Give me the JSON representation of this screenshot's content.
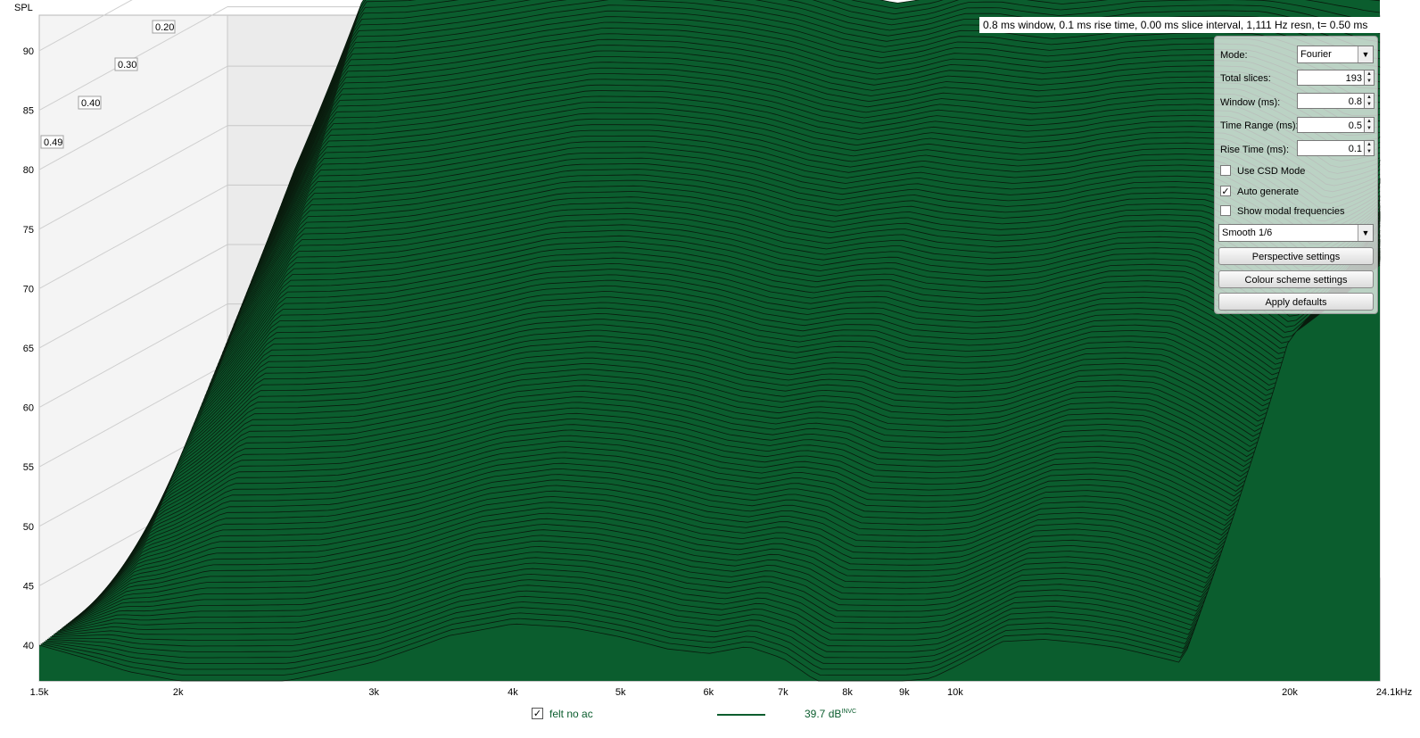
{
  "chart_data": {
    "type": "area",
    "subtype": "cumulative spectral decay waterfall",
    "ylabel": "SPL",
    "yticks": [
      40,
      45,
      50,
      55,
      60,
      65,
      70,
      75,
      80,
      85,
      90
    ],
    "ylim": [
      37,
      93
    ],
    "xscale": "log",
    "xlim_hz": [
      1500,
      24100
    ],
    "xticks": [
      {
        "label": "1.5k",
        "hz": 1500
      },
      {
        "label": "2k",
        "hz": 2000
      },
      {
        "label": "3k",
        "hz": 3000
      },
      {
        "label": "4k",
        "hz": 4000
      },
      {
        "label": "5k",
        "hz": 5000
      },
      {
        "label": "6k",
        "hz": 6000
      },
      {
        "label": "7k",
        "hz": 7000
      },
      {
        "label": "8k",
        "hz": 8000
      },
      {
        "label": "9k",
        "hz": 9000
      },
      {
        "label": "10k",
        "hz": 10000
      },
      {
        "label": "20k",
        "hz": 20000
      },
      {
        "label": "24.1kHz",
        "hz": 24100
      }
    ],
    "depth_ticks_ms": [
      "0.20",
      "0.30",
      "0.40",
      "0.49"
    ],
    "grid": true,
    "fill_color": "#0b5d2e",
    "line_color": "#0a1a0d",
    "slice_count": 193,
    "series": [
      {
        "name": "felt no ac",
        "slice": "first (t = 0 ms)",
        "hz": [
          1500,
          1700,
          2000,
          2200,
          2500,
          3000,
          3400,
          4000,
          4500,
          5000,
          5500,
          6000,
          6500,
          7000,
          7500,
          8000,
          8500,
          9000,
          10000,
          12000,
          15000,
          20000,
          24100
        ],
        "spl": [
          43.3,
          70.0,
          86.4,
          86.5,
          87.2,
          88.4,
          89.0,
          88.6,
          88.0,
          87.2,
          86.0,
          85.3,
          85.8,
          86.8,
          86.9,
          86.5,
          86.2,
          86.4,
          86.9,
          87.0,
          86.8,
          87.4,
          87.6
        ]
      },
      {
        "name": "felt no ac",
        "slice": "last (t = 0.50 ms)",
        "hz": [
          1500,
          1800,
          2000,
          2500,
          3000,
          3500,
          4000,
          4500,
          5000,
          5500,
          6000,
          6500,
          7000,
          7500,
          8000,
          8500,
          9000,
          9500,
          10000,
          11000,
          12000,
          13000,
          14000,
          16000,
          20000,
          24100
        ],
        "spl": [
          40.0,
          37.8,
          37.0,
          37.0,
          38.6,
          40.8,
          41.8,
          41.5,
          40.7,
          39.7,
          39.3,
          39.9,
          38.9,
          37.0,
          37.0,
          37.0,
          37.0,
          37.2,
          38.2,
          40.3,
          40.5,
          40.2,
          39.8,
          38.5,
          66.0,
          72.0
        ]
      }
    ]
  },
  "info_bar": "0.8 ms window, 0.1 ms rise time, 0.00 ms slice interval, 1,111 Hz resn, t= 0.50 ms",
  "panel": {
    "mode_label": "Mode:",
    "mode_value": "Fourier",
    "total_slices_label": "Total slices:",
    "total_slices_value": "193",
    "window_label": "Window (ms):",
    "window_value": "0.8",
    "time_range_label": "Time Range (ms):",
    "time_range_value": "0.5",
    "rise_time_label": "Rise Time (ms):",
    "rise_time_value": "0.1",
    "use_csd_label": "Use CSD Mode",
    "use_csd_checked": false,
    "auto_generate_label": "Auto generate",
    "auto_generate_checked": true,
    "show_modal_label": "Show modal frequencies",
    "show_modal_checked": false,
    "smoothing_value": "Smooth 1/6",
    "perspective_button": "Perspective settings",
    "colour_scheme_button": "Colour scheme settings",
    "apply_defaults_button": "Apply defaults"
  },
  "legend": {
    "name": "felt no ac",
    "checked": true,
    "value": "39.7 dB",
    "value_superscript": "INVC",
    "color": "#0b5d2e"
  }
}
